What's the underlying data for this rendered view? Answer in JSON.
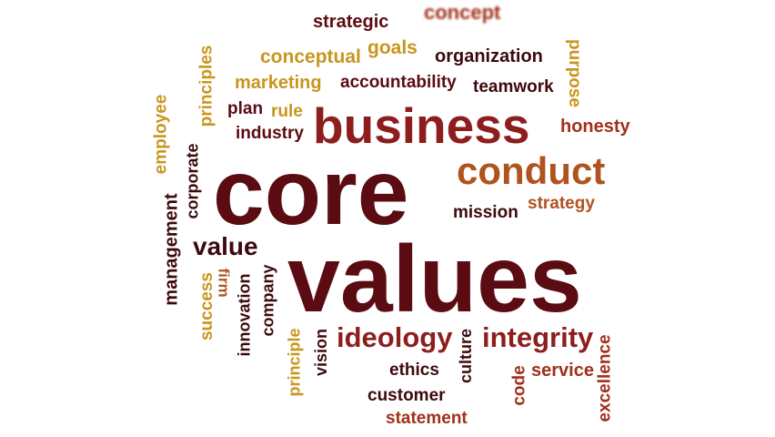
{
  "palette": {
    "darkred": "#5a0c12",
    "crimson": "#8e1e1e",
    "rust": "#b0531f",
    "gold": "#c9951d",
    "brick": "#a0301a",
    "maroon": "#3c0a0e"
  },
  "words": [
    {
      "text": "concept",
      "color": "brick"
    },
    {
      "text": "strategic",
      "color": "darkred"
    },
    {
      "text": "conceptual",
      "color": "gold"
    },
    {
      "text": "goals",
      "color": "gold"
    },
    {
      "text": "organization",
      "color": "maroon"
    },
    {
      "text": "principles",
      "color": "gold"
    },
    {
      "text": "purpose",
      "color": "gold"
    },
    {
      "text": "marketing",
      "color": "gold"
    },
    {
      "text": "accountability",
      "color": "darkred"
    },
    {
      "text": "teamwork",
      "color": "maroon"
    },
    {
      "text": "employee",
      "color": "gold"
    },
    {
      "text": "plan",
      "color": "darkred"
    },
    {
      "text": "rule",
      "color": "gold"
    },
    {
      "text": "business",
      "color": "crimson"
    },
    {
      "text": "honesty",
      "color": "brick"
    },
    {
      "text": "industry",
      "color": "darkred"
    },
    {
      "text": "corporate",
      "color": "maroon"
    },
    {
      "text": "core",
      "color": "darkred"
    },
    {
      "text": "conduct",
      "color": "rust"
    },
    {
      "text": "management",
      "color": "maroon"
    },
    {
      "text": "strategy",
      "color": "rust"
    },
    {
      "text": "mission",
      "color": "maroon"
    },
    {
      "text": "value",
      "color": "maroon"
    },
    {
      "text": "values",
      "color": "darkred"
    },
    {
      "text": "success",
      "color": "gold"
    },
    {
      "text": "firm",
      "color": "rust"
    },
    {
      "text": "innovation",
      "color": "maroon"
    },
    {
      "text": "company",
      "color": "maroon"
    },
    {
      "text": "principle",
      "color": "gold"
    },
    {
      "text": "vision",
      "color": "maroon"
    },
    {
      "text": "ideology",
      "color": "crimson"
    },
    {
      "text": "culture",
      "color": "maroon"
    },
    {
      "text": "integrity",
      "color": "crimson"
    },
    {
      "text": "excellence",
      "color": "brick"
    },
    {
      "text": "ethics",
      "color": "maroon"
    },
    {
      "text": "code",
      "color": "brick"
    },
    {
      "text": "service",
      "color": "brick"
    },
    {
      "text": "customer",
      "color": "maroon"
    },
    {
      "text": "statement",
      "color": "brick"
    }
  ]
}
